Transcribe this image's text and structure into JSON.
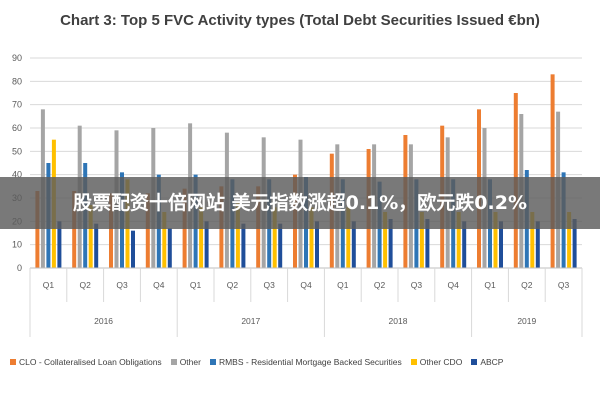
{
  "banner": {
    "text": "股票配资十倍网站 美元指数涨超0.1%，欧元跌0.2%"
  },
  "chart_data": {
    "type": "bar",
    "title": "Chart 3: Top 5 FVC Activity types (Total Debt Securities Issued €bn)",
    "xlabel": "",
    "ylabel": "",
    "ylim": [
      0,
      90
    ],
    "yticks": [
      0,
      10,
      20,
      30,
      40,
      50,
      60,
      70,
      80,
      90
    ],
    "grid": true,
    "legend_position": "bottom",
    "categories": [
      "Q1",
      "Q2",
      "Q3",
      "Q4",
      "Q1",
      "Q2",
      "Q3",
      "Q4",
      "Q1",
      "Q2",
      "Q3",
      "Q4",
      "Q1",
      "Q2",
      "Q3"
    ],
    "groups": [
      {
        "label": "2016",
        "count": 4
      },
      {
        "label": "2017",
        "count": 4
      },
      {
        "label": "2018",
        "count": 4
      },
      {
        "label": "2019",
        "count": 3
      }
    ],
    "series": [
      {
        "name": "CLO - Collateralised Loan Obligations",
        "color": "#ED7D31",
        "values": [
          33,
          33,
          32,
          32,
          34,
          35,
          35,
          40,
          49,
          51,
          57,
          61,
          68,
          75,
          83
        ]
      },
      {
        "name": "Other",
        "color": "#A5A5A5",
        "values": [
          68,
          61,
          59,
          60,
          62,
          58,
          56,
          55,
          53,
          53,
          53,
          56,
          60,
          66,
          67
        ]
      },
      {
        "name": "RMBS - Residential Mortgage Backed Securities",
        "color": "#2E75B6",
        "values": [
          45,
          45,
          41,
          40,
          40,
          38,
          38,
          39,
          38,
          37,
          38,
          38,
          38,
          42,
          41
        ]
      },
      {
        "name": "Other CDO",
        "color": "#FFC000",
        "values": [
          55,
          27,
          38,
          24,
          26,
          28,
          26,
          26,
          26,
          24,
          24,
          24,
          24,
          24,
          24
        ]
      },
      {
        "name": "ABCP",
        "color": "#1F4E9A",
        "values": [
          20,
          19,
          16,
          17,
          20,
          19,
          19,
          20,
          20,
          21,
          21,
          20,
          20,
          20,
          21
        ]
      }
    ]
  }
}
